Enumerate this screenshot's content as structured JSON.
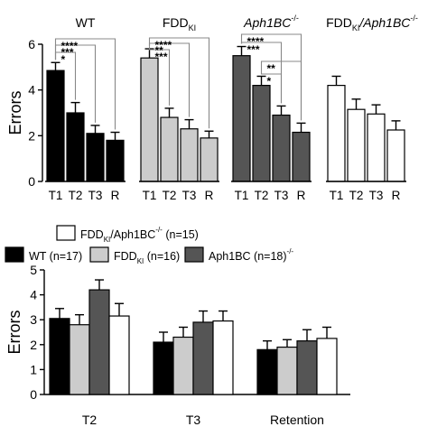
{
  "colors": {
    "wt": "#000000",
    "fdd": "#cccccc",
    "aph": "#555555",
    "double": "#ffffff",
    "stroke": "#000000",
    "bracket": "#888888"
  },
  "chart_data": [
    {
      "type": "bar",
      "panel": "top",
      "ylabel": "Errors",
      "ylim": [
        0,
        6
      ],
      "yticks": [
        "0",
        "2",
        "4",
        "6"
      ],
      "categories": [
        "T1",
        "T2",
        "T3",
        "R"
      ],
      "groups": [
        {
          "key": "wt",
          "title": "WT",
          "values": [
            4.85,
            3.0,
            2.1,
            1.8
          ],
          "errors": [
            0.35,
            0.45,
            0.35,
            0.35
          ],
          "significance": [
            {
              "from": 0,
              "to": 1,
              "label": "*"
            },
            {
              "from": 0,
              "to": 2,
              "label": "***"
            },
            {
              "from": 0,
              "to": 3,
              "label": "****"
            }
          ]
        },
        {
          "key": "fdd",
          "title": "FDD",
          "title_sub": "KI",
          "values": [
            5.4,
            2.8,
            2.3,
            1.9
          ],
          "errors": [
            0.4,
            0.4,
            0.4,
            0.3
          ],
          "significance": [
            {
              "from": 0,
              "to": 1,
              "label": "***"
            },
            {
              "from": 0,
              "to": 2,
              "label": "**"
            },
            {
              "from": 0,
              "to": 3,
              "label": "****"
            }
          ]
        },
        {
          "key": "aph",
          "title": "Aph1BC",
          "title_sup": "-/-",
          "values": [
            5.5,
            4.2,
            2.9,
            2.15
          ],
          "errors": [
            0.4,
            0.4,
            0.4,
            0.4
          ],
          "significance": [
            {
              "from": 0,
              "to": 2,
              "label": "***"
            },
            {
              "from": 0,
              "to": 3,
              "label": "****"
            },
            {
              "from": 1,
              "to": 2,
              "label": "*"
            },
            {
              "from": 1,
              "to": 3,
              "label": "**"
            }
          ]
        },
        {
          "key": "double",
          "title": "FDD",
          "title_sub": "KI",
          "title_rest": "/Aph1BC",
          "title_sup": "-/-",
          "values": [
            4.2,
            3.15,
            2.95,
            2.25
          ],
          "errors": [
            0.4,
            0.45,
            0.4,
            0.4
          ],
          "significance": []
        }
      ]
    },
    {
      "type": "bar",
      "panel": "bottom",
      "ylabel": "Errors",
      "ylim": [
        0,
        5
      ],
      "yticks": [
        "0",
        "1",
        "2",
        "3",
        "4",
        "5"
      ],
      "categories": [
        "T2",
        "T3",
        "Retention"
      ],
      "series": [
        {
          "key": "wt",
          "name": "WT (n=17)",
          "values": [
            3.05,
            2.1,
            1.8
          ],
          "errors": [
            0.4,
            0.4,
            0.35
          ]
        },
        {
          "key": "fdd",
          "name": "FDD",
          "name_sub": "KI",
          "name_rest": " (n=16)",
          "values": [
            2.8,
            2.3,
            1.9
          ],
          "errors": [
            0.4,
            0.4,
            0.3
          ]
        },
        {
          "key": "aph",
          "name": "Aph1BC",
          "name_sup": "-/-",
          "name_rest": " (n=18)",
          "values": [
            4.2,
            2.9,
            2.15
          ],
          "errors": [
            0.4,
            0.45,
            0.45
          ]
        },
        {
          "key": "double",
          "name": "FDD",
          "name_sub": "KI",
          "name_rest": "/Aph1BC",
          "name_sup": "-/-",
          "name_tail": " (n=15)",
          "values": [
            3.15,
            2.95,
            2.25
          ],
          "errors": [
            0.5,
            0.4,
            0.45
          ]
        }
      ]
    }
  ]
}
